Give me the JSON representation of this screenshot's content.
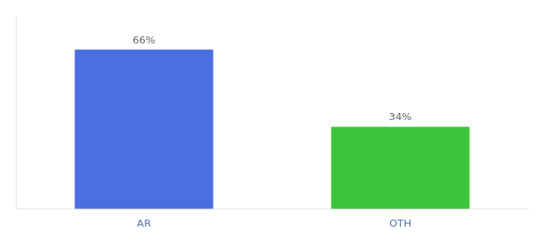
{
  "chart_data": {
    "type": "bar",
    "categories": [
      "AR",
      "OTH"
    ],
    "values": [
      66,
      34
    ],
    "value_labels": [
      "66%",
      "34%"
    ],
    "colors": [
      "#4B6FE0",
      "#3DC43D"
    ],
    "ylim": [
      0,
      80
    ],
    "grid": false,
    "data_labels": true,
    "tick_labels": "x"
  }
}
